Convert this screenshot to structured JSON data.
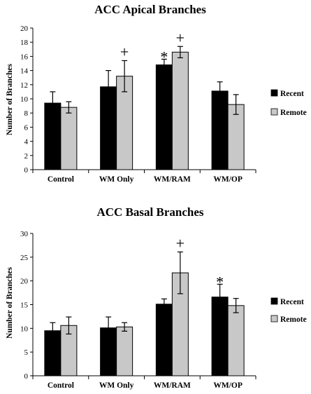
{
  "chart_data": [
    {
      "type": "bar",
      "title": "ACC Apical Branches",
      "ylabel": "Number of Branches",
      "xlabel": "",
      "ylim": [
        0,
        20
      ],
      "yticks": [
        "0",
        "2",
        "4",
        "6",
        "8",
        "10",
        "12",
        "14",
        "16",
        "18",
        "20"
      ],
      "categories": [
        "Control",
        "WM Only",
        "WM/RAM",
        "WM/OP"
      ],
      "legend_position": "right",
      "series": [
        {
          "name": "Recent",
          "color": "#000000",
          "values": [
            9.4,
            11.7,
            14.8,
            11.1
          ],
          "errors": [
            1.6,
            2.3,
            0.8,
            1.3
          ]
        },
        {
          "name": "Remote",
          "color": "#c8c8c8",
          "values": [
            8.8,
            13.2,
            16.6,
            9.2
          ],
          "errors": [
            0.8,
            2.2,
            0.8,
            1.4
          ]
        }
      ],
      "annotations": [
        {
          "text": "+",
          "category": 1,
          "series": 1
        },
        {
          "text": "*",
          "category": 2,
          "series": 0
        },
        {
          "text": "+",
          "category": 2,
          "series": 1
        }
      ]
    },
    {
      "type": "bar",
      "title": "ACC Basal Branches",
      "ylabel": "Number of Branches",
      "xlabel": "",
      "ylim": [
        0,
        30
      ],
      "yticks": [
        "0",
        "5",
        "10",
        "15",
        "20",
        "25",
        "30"
      ],
      "categories": [
        "Control",
        "WM Only",
        "WM/RAM",
        "WM/OP"
      ],
      "legend_position": "right",
      "series": [
        {
          "name": "Recent",
          "color": "#000000",
          "values": [
            9.5,
            10.1,
            15.1,
            16.6
          ],
          "errors": [
            1.7,
            2.3,
            1.1,
            2.7
          ]
        },
        {
          "name": "Remote",
          "color": "#c8c8c8",
          "values": [
            10.6,
            10.3,
            21.7,
            14.8
          ],
          "errors": [
            1.8,
            0.9,
            4.4,
            1.5
          ]
        }
      ],
      "annotations": [
        {
          "text": "+",
          "category": 2,
          "series": 1
        },
        {
          "text": "*",
          "category": 3,
          "series": 0
        }
      ]
    }
  ]
}
